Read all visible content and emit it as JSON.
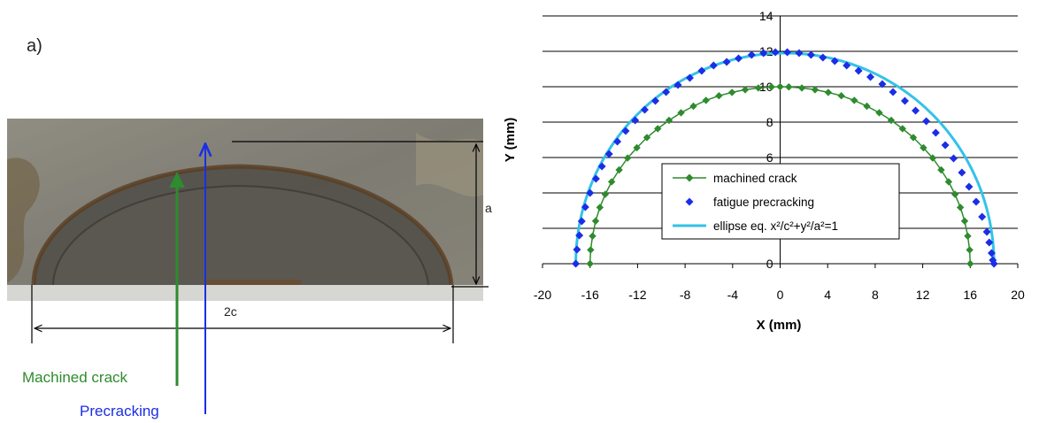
{
  "panel_label": "a)",
  "photo": {
    "dimension_a": "a",
    "dimension_2c": "2c",
    "machined_crack_label": "Machined crack",
    "precracking_label": "Precracking"
  },
  "colors": {
    "machined": "#2e8b2e",
    "fatigue": "#1a2ee6",
    "ellipse": "#33c2e8",
    "green_text": "#2e8b2e",
    "blue_text": "#1a2ee6"
  },
  "chart_data": {
    "type": "scatter",
    "xlabel": "X (mm)",
    "ylabel": "Y (mm)",
    "xlim": [
      -20,
      20
    ],
    "ylim": [
      0,
      14
    ],
    "xticks": [
      -20,
      -16,
      -12,
      -8,
      -4,
      0,
      4,
      8,
      12,
      16,
      20
    ],
    "yticks": [
      0,
      2,
      4,
      6,
      8,
      10,
      12,
      14
    ],
    "grid": "horizontal",
    "legend_position": "center-right",
    "series": [
      {
        "name": "machined crack",
        "style": "line-diamond",
        "x": [
          -16.0,
          -15.95,
          -15.79,
          -15.53,
          -15.17,
          -14.72,
          -14.18,
          -13.55,
          -12.84,
          -12.06,
          -11.21,
          -10.3,
          -9.35,
          -8.34,
          -7.3,
          -6.24,
          -5.15,
          -4.05,
          -2.94,
          -1.83,
          -0.73,
          0.0,
          0.73,
          1.83,
          2.94,
          4.05,
          5.15,
          6.24,
          7.3,
          8.34,
          9.35,
          10.3,
          11.21,
          12.06,
          12.84,
          13.55,
          14.18,
          14.72,
          15.17,
          15.53,
          15.79,
          15.95,
          16.0
        ],
        "y": [
          0.0,
          0.78,
          1.56,
          2.41,
          3.18,
          3.92,
          4.63,
          5.3,
          5.97,
          6.55,
          7.13,
          7.63,
          8.1,
          8.53,
          8.9,
          9.23,
          9.49,
          9.68,
          9.83,
          9.93,
          9.99,
          10.0,
          9.99,
          9.93,
          9.83,
          9.68,
          9.49,
          9.23,
          8.9,
          8.53,
          8.1,
          7.63,
          7.13,
          6.55,
          5.97,
          5.3,
          4.63,
          3.92,
          3.18,
          2.41,
          1.56,
          0.78,
          0.0
        ]
      },
      {
        "name": "fatigue precracking",
        "style": "diamond",
        "x": [
          -17.2,
          -17.1,
          -16.9,
          -16.7,
          -16.4,
          -16.0,
          -15.5,
          -15.0,
          -14.4,
          -13.7,
          -13.0,
          -12.2,
          -11.4,
          -10.5,
          -9.6,
          -8.6,
          -7.6,
          -6.6,
          -5.6,
          -4.5,
          -3.5,
          -2.4,
          -1.4,
          -0.4,
          0.6,
          1.6,
          2.6,
          3.6,
          4.6,
          5.6,
          6.6,
          7.6,
          8.6,
          9.5,
          10.5,
          11.4,
          12.3,
          13.1,
          13.9,
          14.6,
          15.3,
          15.9,
          16.5,
          17.0,
          17.4,
          17.6,
          17.8,
          17.9,
          18.0
        ],
        "y": [
          0.0,
          0.8,
          1.6,
          2.4,
          3.2,
          4.0,
          4.8,
          5.5,
          6.2,
          6.9,
          7.5,
          8.1,
          8.7,
          9.2,
          9.7,
          10.1,
          10.5,
          10.9,
          11.2,
          11.4,
          11.6,
          11.8,
          11.9,
          11.95,
          11.95,
          11.9,
          11.8,
          11.65,
          11.45,
          11.2,
          10.9,
          10.55,
          10.15,
          9.7,
          9.2,
          8.65,
          8.05,
          7.4,
          6.7,
          5.95,
          5.15,
          4.35,
          3.5,
          2.65,
          1.8,
          1.2,
          0.6,
          0.2,
          0.0
        ]
      },
      {
        "name": "ellipse eq. x²/c²+y²/a²=1",
        "style": "line",
        "c": 17.6,
        "a": 11.9,
        "x_offset": 0.4
      }
    ]
  }
}
